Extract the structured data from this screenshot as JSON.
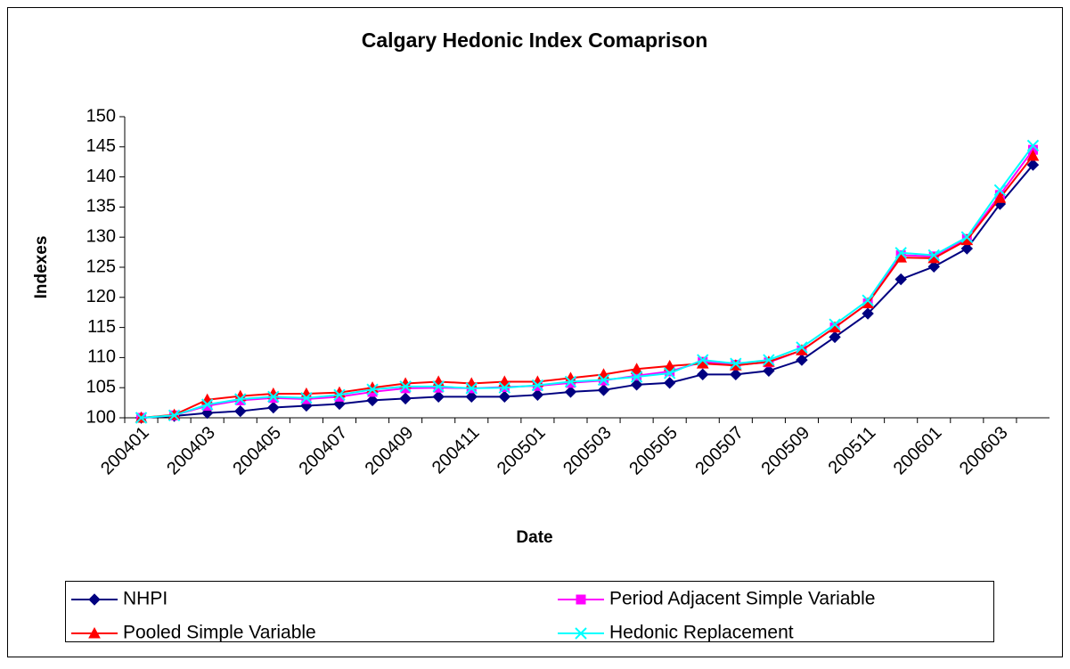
{
  "chart_data": {
    "type": "line",
    "title": "Calgary Hedonic Index Comaprison",
    "x_label": "Date",
    "y_label": "Indexes",
    "categories": [
      "200401",
      null,
      "200403",
      null,
      "200405",
      null,
      "200407",
      null,
      "200409",
      null,
      "200411",
      null,
      "200501",
      null,
      "200503",
      null,
      "200505",
      null,
      "200507",
      null,
      "200509",
      null,
      "200511",
      null,
      "200601",
      null,
      "200603",
      null
    ],
    "series": [
      {
        "name": "NHPI",
        "color": "#000080",
        "marker": "diamond",
        "values": [
          100,
          100.3,
          100.8,
          101.1,
          101.7,
          102.0,
          102.3,
          102.9,
          103.2,
          103.5,
          103.5,
          103.5,
          103.8,
          104.3,
          104.6,
          105.5,
          105.8,
          107.2,
          107.2,
          107.8,
          109.6,
          113.4,
          117.3,
          123.0,
          125.1,
          128.1,
          135.5,
          142.0
        ]
      },
      {
        "name": "Period Adjacent Simple Variable",
        "color": "#ff00ff",
        "marker": "square",
        "values": [
          100,
          100.4,
          102.0,
          102.9,
          103.3,
          103.1,
          103.5,
          104.3,
          104.9,
          105.0,
          104.9,
          105.1,
          105.3,
          105.8,
          106.2,
          107.0,
          107.7,
          109.3,
          108.8,
          109.2,
          111.2,
          115.0,
          119.0,
          127.0,
          126.8,
          129.7,
          137.0,
          144.5
        ]
      },
      {
        "name": "Pooled Simple Variable",
        "color": "#ff0000",
        "marker": "triangle",
        "values": [
          100,
          100.5,
          103.0,
          103.6,
          104.0,
          104.0,
          104.2,
          105.0,
          105.7,
          106.0,
          105.7,
          106.0,
          106.0,
          106.6,
          107.2,
          108.1,
          108.6,
          109.0,
          108.7,
          109.3,
          111.2,
          115.0,
          119.0,
          126.6,
          126.5,
          129.5,
          136.5,
          143.5
        ]
      },
      {
        "name": "Hedonic Replacement",
        "color": "#00ffff",
        "marker": "x",
        "values": [
          100,
          100.4,
          102.2,
          103.1,
          103.5,
          103.3,
          103.8,
          104.7,
          105.2,
          105.2,
          104.9,
          105.0,
          105.4,
          106.0,
          106.3,
          106.8,
          107.4,
          109.6,
          109.0,
          109.6,
          111.7,
          115.5,
          119.5,
          127.4,
          127.0,
          130.0,
          137.8,
          145.2
        ]
      }
    ],
    "ylim": [
      100,
      150
    ],
    "yticks": [
      100,
      105,
      110,
      115,
      120,
      125,
      130,
      135,
      140,
      145,
      150
    ],
    "grid": false,
    "legend": "bottom"
  }
}
